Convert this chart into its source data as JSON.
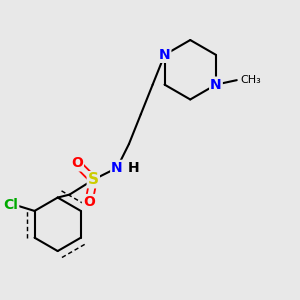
{
  "background_color": "#e8e8e8",
  "bond_color": "#000000",
  "aromatic_bond_color": "#000000",
  "atom_colors": {
    "N": "#0000ff",
    "S": "#cccc00",
    "O": "#ff0000",
    "Cl": "#00aa00",
    "C": "#000000",
    "H": "#000000"
  },
  "font_size": 10,
  "figsize": [
    3.0,
    3.0
  ],
  "dpi": 100
}
